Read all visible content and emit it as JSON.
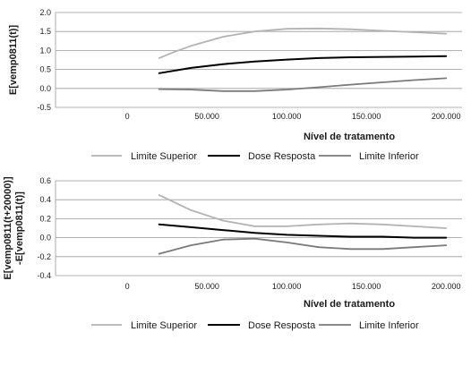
{
  "chart_data": [
    {
      "type": "line",
      "title": "",
      "xlabel": "Nível de tratamento",
      "ylabel": "E[vemp0811(t)]",
      "xlim": [
        -45000,
        210000
      ],
      "ylim": [
        -0.5,
        2.0
      ],
      "x_ticks": [
        "0",
        "50.000",
        "100.000",
        "150.000",
        "200.000"
      ],
      "x_tick_values": [
        0,
        50000,
        100000,
        150000,
        200000
      ],
      "y_ticks": [
        "-0.5",
        "0.0",
        "0.5",
        "1.0",
        "1.5",
        "2.0"
      ],
      "y_tick_values": [
        -0.5,
        0.0,
        0.5,
        1.0,
        1.5,
        2.0
      ],
      "grid": "horizontal",
      "legend_position": "bottom",
      "series": [
        {
          "name": "Limite Superior",
          "color": "#b3b3b3",
          "x": [
            20000,
            30000,
            40000,
            60000,
            80000,
            100000,
            120000,
            140000,
            160000,
            180000,
            200000
          ],
          "y": [
            0.8,
            0.97,
            1.12,
            1.36,
            1.5,
            1.57,
            1.58,
            1.56,
            1.52,
            1.48,
            1.44
          ]
        },
        {
          "name": "Dose Resposta",
          "color": "#000000",
          "x": [
            20000,
            40000,
            60000,
            80000,
            100000,
            120000,
            140000,
            160000,
            180000,
            200000
          ],
          "y": [
            0.4,
            0.54,
            0.64,
            0.71,
            0.76,
            0.8,
            0.82,
            0.83,
            0.84,
            0.85
          ]
        },
        {
          "name": "Limite Inferior",
          "color": "#7a7a7a",
          "x": [
            20000,
            40000,
            60000,
            80000,
            100000,
            120000,
            140000,
            160000,
            180000,
            200000
          ],
          "y": [
            -0.02,
            -0.03,
            -0.07,
            -0.07,
            -0.03,
            0.03,
            0.1,
            0.16,
            0.22,
            0.27
          ]
        }
      ]
    },
    {
      "type": "line",
      "title": "",
      "xlabel": "Nível de tratamento",
      "ylabel_lines": [
        "E[vemp0811(t+20000)]",
        "-E[vemp0811(t)]"
      ],
      "xlim": [
        -45000,
        210000
      ],
      "ylim": [
        -0.4,
        0.6
      ],
      "x_ticks": [
        "0",
        "50.000",
        "100.000",
        "150.000",
        "200.000"
      ],
      "x_tick_values": [
        0,
        50000,
        100000,
        150000,
        200000
      ],
      "y_ticks": [
        "-0.4",
        "-0.2",
        "0.0",
        "0.2",
        "0.4",
        "0.6"
      ],
      "y_tick_values": [
        -0.4,
        -0.2,
        0.0,
        0.2,
        0.4,
        0.6
      ],
      "grid": "horizontal",
      "legend_position": "bottom",
      "series": [
        {
          "name": "Limite Superior",
          "color": "#b3b3b3",
          "x": [
            20000,
            40000,
            60000,
            80000,
            100000,
            120000,
            140000,
            160000,
            180000,
            200000
          ],
          "y": [
            0.45,
            0.29,
            0.18,
            0.12,
            0.12,
            0.14,
            0.15,
            0.14,
            0.12,
            0.1
          ]
        },
        {
          "name": "Dose Resposta",
          "color": "#000000",
          "x": [
            20000,
            40000,
            60000,
            80000,
            100000,
            120000,
            140000,
            160000,
            180000,
            200000
          ],
          "y": [
            0.14,
            0.11,
            0.08,
            0.05,
            0.03,
            0.02,
            0.01,
            0.01,
            0.0,
            0.0
          ]
        },
        {
          "name": "Limite Inferior",
          "color": "#7a7a7a",
          "x": [
            20000,
            40000,
            60000,
            80000,
            100000,
            120000,
            140000,
            160000,
            180000,
            200000
          ],
          "y": [
            -0.17,
            -0.08,
            -0.02,
            -0.01,
            -0.05,
            -0.1,
            -0.12,
            -0.12,
            -0.1,
            -0.08
          ]
        }
      ]
    }
  ]
}
